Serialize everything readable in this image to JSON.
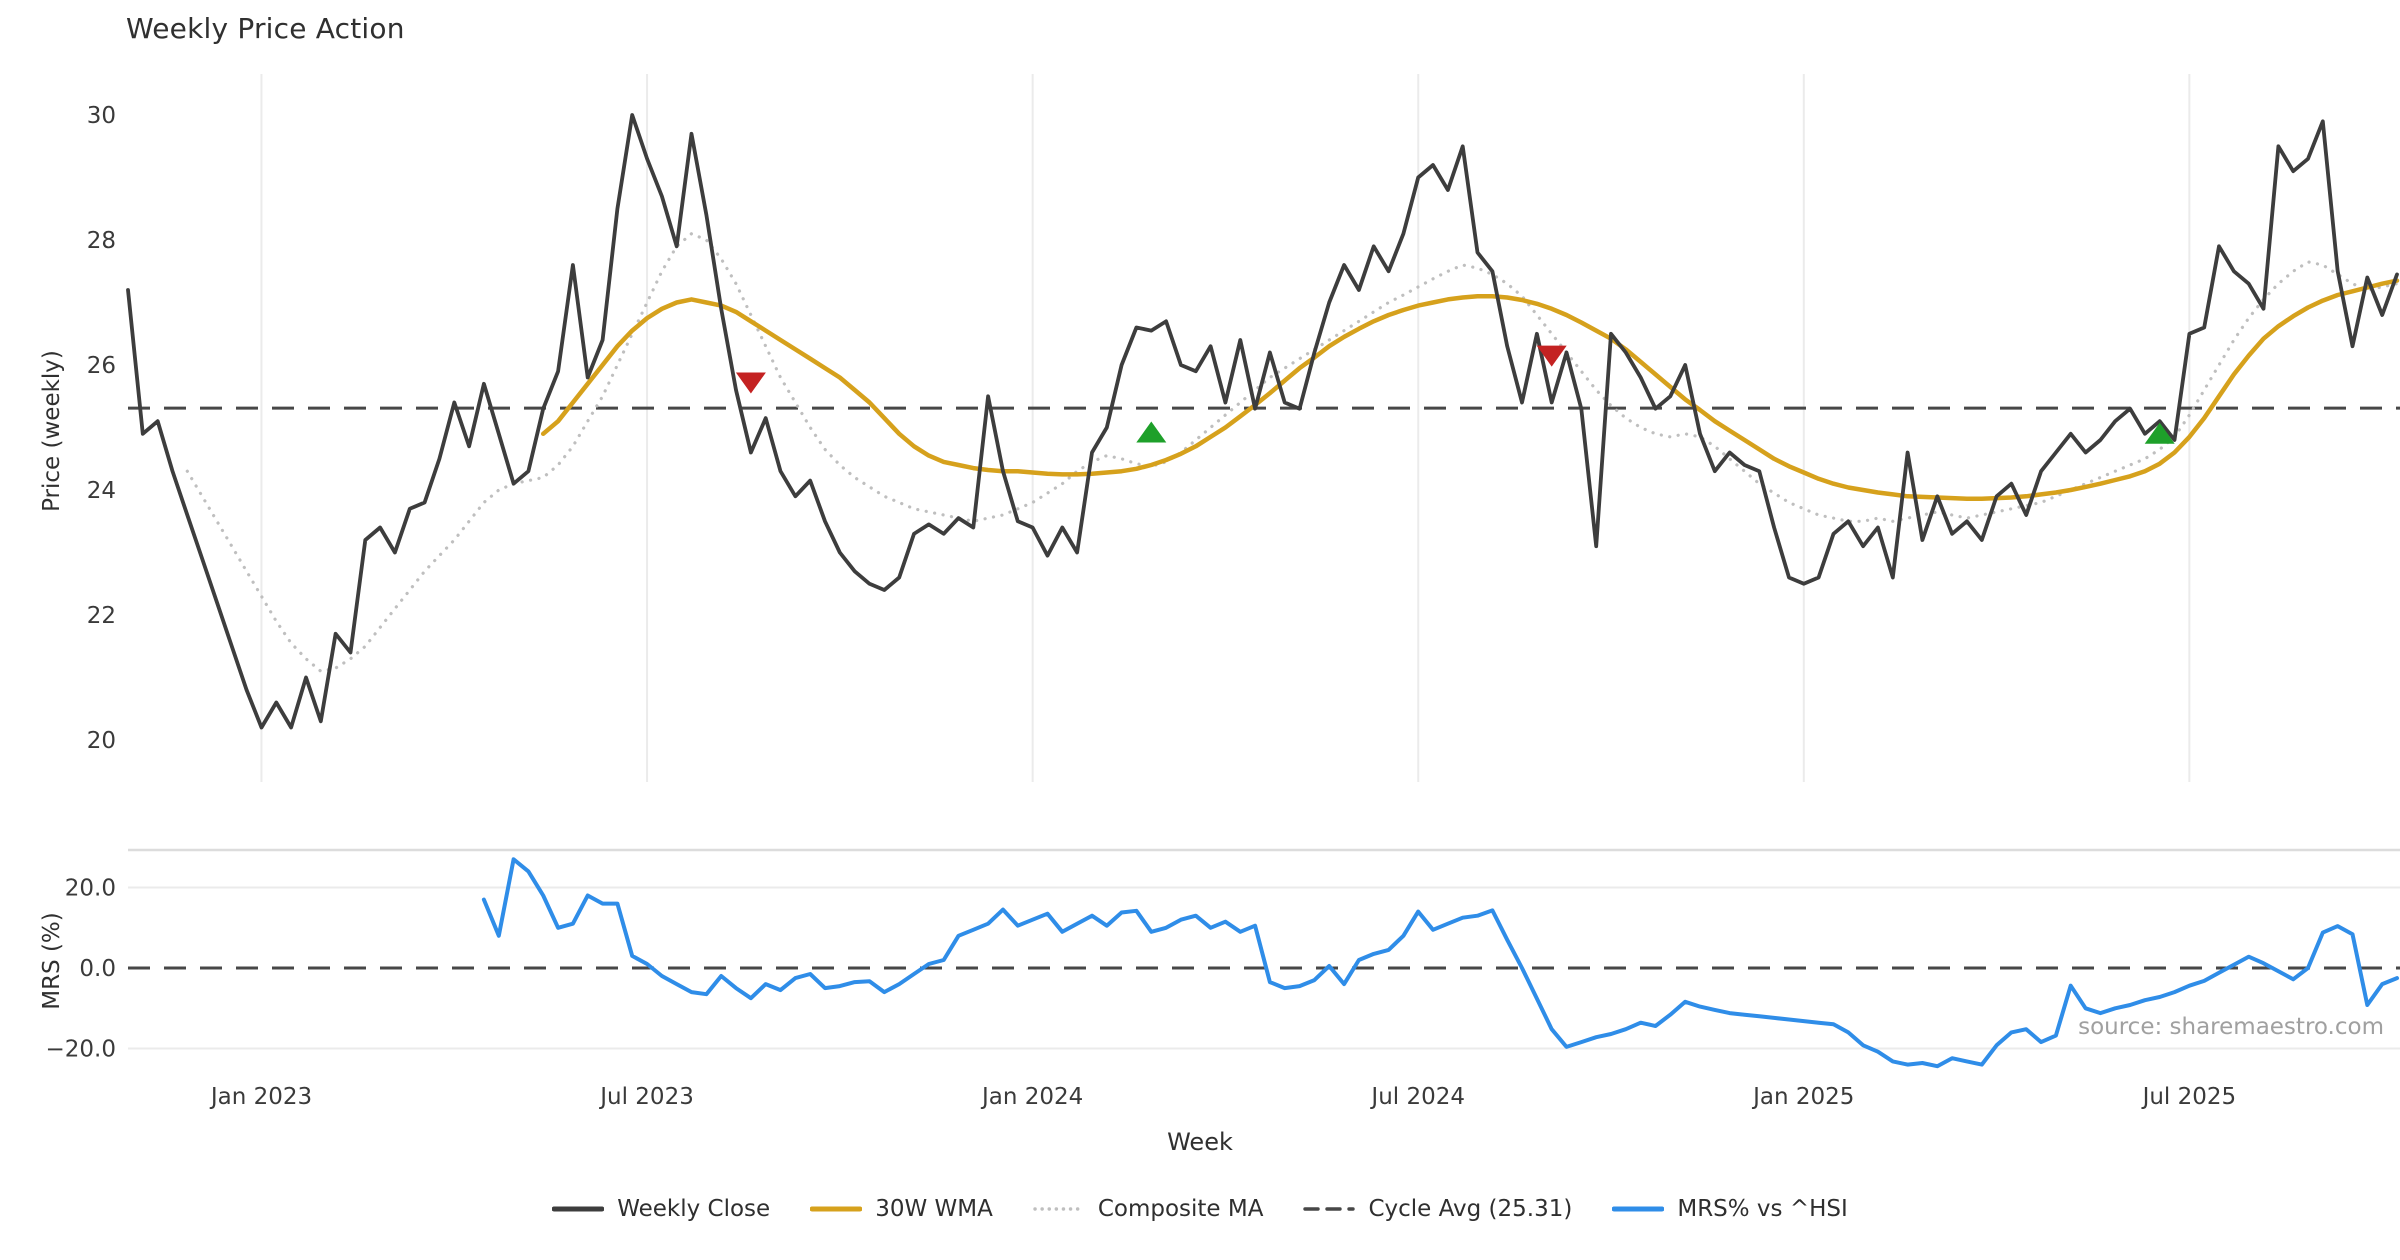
{
  "title": "Weekly Price Action",
  "source": "source: sharemaestro.com",
  "colors": {
    "close": "#3d3d3d",
    "wma": "#d6a11c",
    "composite": "#bfbfbf",
    "cycle_avg": "#474747",
    "mrs": "#2f8de8",
    "sell_marker": "#c42222",
    "buy_marker": "#1ea02a",
    "gridline": "#ebebeb",
    "panel_spine": "#dcdcdc",
    "tick_text": "#3a3a3a",
    "background": "#ffffff"
  },
  "legend": [
    {
      "label": "Weekly Close",
      "style": "solid",
      "color": "#3d3d3d"
    },
    {
      "label": "30W WMA",
      "style": "solid",
      "color": "#d6a11c"
    },
    {
      "label": "Composite MA",
      "style": "dotted",
      "color": "#bfbfbf"
    },
    {
      "label": "Cycle Avg (25.31)",
      "style": "dashed",
      "color": "#474747"
    },
    {
      "label": "MRS% vs ^HSI",
      "style": "solid",
      "color": "#2f8de8"
    }
  ],
  "chart_data": {
    "type": "line",
    "xlabel": "Week",
    "weeks_total": 154,
    "x_start": "2022-10-31",
    "xticks": [
      {
        "label": "Jan 2023",
        "week": 9
      },
      {
        "label": "Jul 2023",
        "week": 35
      },
      {
        "label": "Jan 2024",
        "week": 61
      },
      {
        "label": "Jul 2024",
        "week": 87
      },
      {
        "label": "Jan 2025",
        "week": 113
      },
      {
        "label": "Jul 2025",
        "week": 139
      }
    ],
    "panels": [
      {
        "name": "price",
        "ylabel": "Price (weekly)",
        "yticks": [
          30,
          28,
          26,
          24,
          22,
          20
        ],
        "ytick_labels": [
          "30",
          "28",
          "26",
          "24",
          "22",
          "20"
        ],
        "ylim": [
          19.3,
          30.7
        ],
        "grid": "vertical",
        "cycle_avg": 25.31,
        "series": [
          {
            "name": "Weekly Close",
            "start_week": 0,
            "values": [
              27.2,
              24.9,
              25.1,
              24.3,
              23.6,
              22.9,
              22.2,
              21.5,
              20.8,
              20.2,
              20.6,
              20.2,
              21.0,
              20.3,
              21.7,
              21.4,
              23.2,
              23.4,
              23.0,
              23.7,
              23.8,
              24.5,
              25.4,
              24.7,
              25.7,
              24.9,
              24.1,
              24.3,
              25.3,
              25.9,
              27.6,
              25.8,
              26.4,
              28.5,
              30.0,
              29.3,
              28.7,
              27.9,
              29.7,
              28.4,
              26.9,
              25.6,
              24.6,
              25.15,
              24.3,
              23.9,
              24.15,
              23.5,
              23.0,
              22.7,
              22.5,
              22.4,
              22.6,
              23.3,
              23.45,
              23.3,
              23.55,
              23.4,
              25.5,
              24.3,
              23.5,
              23.4,
              22.95,
              23.4,
              23.0,
              24.6,
              25.0,
              26.0,
              26.6,
              26.55,
              26.7,
              26.0,
              25.9,
              26.3,
              25.4,
              26.4,
              25.3,
              26.2,
              25.4,
              25.3,
              26.2,
              27.0,
              27.6,
              27.2,
              27.9,
              27.5,
              28.1,
              29.0,
              29.2,
              28.8,
              29.5,
              27.8,
              27.5,
              26.3,
              25.4,
              26.5,
              25.4,
              26.2,
              25.3,
              23.1,
              26.5,
              26.2,
              25.8,
              25.3,
              25.5,
              26.0,
              24.9,
              24.3,
              24.6,
              24.4,
              24.3,
              23.4,
              22.6,
              22.5,
              22.6,
              23.3,
              23.5,
              23.1,
              23.4,
              22.6,
              24.6,
              23.2,
              23.9,
              23.3,
              23.5,
              23.2,
              23.9,
              24.1,
              23.6,
              24.3,
              24.6,
              24.9,
              24.6,
              24.8,
              25.1,
              25.3,
              24.9,
              25.1,
              24.8,
              26.5,
              26.6,
              27.9,
              27.5,
              27.3,
              26.9,
              29.5,
              29.1,
              29.3,
              29.9,
              27.5,
              26.3,
              27.4,
              26.8,
              27.45
            ]
          },
          {
            "name": "30W WMA",
            "start_week": 28,
            "values": [
              24.9,
              25.1,
              25.4,
              25.7,
              26.0,
              26.3,
              26.55,
              26.75,
              26.9,
              27.0,
              27.05,
              27.0,
              26.95,
              26.85,
              26.7,
              26.55,
              26.4,
              26.25,
              26.1,
              25.95,
              25.8,
              25.6,
              25.4,
              25.15,
              24.9,
              24.7,
              24.55,
              24.45,
              24.4,
              24.35,
              24.32,
              24.3,
              24.3,
              24.28,
              24.26,
              24.25,
              24.25,
              24.26,
              24.28,
              24.3,
              24.34,
              24.4,
              24.48,
              24.58,
              24.7,
              24.85,
              25.0,
              25.18,
              25.36,
              25.55,
              25.75,
              25.95,
              26.12,
              26.3,
              26.45,
              26.58,
              26.7,
              26.8,
              26.88,
              26.95,
              27.0,
              27.05,
              27.08,
              27.1,
              27.1,
              27.08,
              27.04,
              26.98,
              26.9,
              26.8,
              26.68,
              26.55,
              26.42,
              26.25,
              26.05,
              25.85,
              25.65,
              25.45,
              25.28,
              25.1,
              24.95,
              24.8,
              24.65,
              24.5,
              24.38,
              24.28,
              24.18,
              24.1,
              24.04,
              24.0,
              23.96,
              23.93,
              23.9,
              23.89,
              23.88,
              23.87,
              23.86,
              23.86,
              23.87,
              23.88,
              23.9,
              23.93,
              23.96,
              24.0,
              24.05,
              24.1,
              24.16,
              24.22,
              24.3,
              24.42,
              24.6,
              24.85,
              25.15,
              25.5,
              25.85,
              26.15,
              26.42,
              26.62,
              26.78,
              26.92,
              27.03,
              27.12,
              27.18,
              27.24,
              27.3,
              27.35
            ]
          },
          {
            "name": "Composite MA",
            "start_week": 4,
            "values": [
              24.3,
              23.9,
              23.5,
              23.1,
              22.7,
              22.3,
              21.9,
              21.55,
              21.3,
              21.1,
              21.15,
              21.3,
              21.5,
              21.8,
              22.1,
              22.4,
              22.7,
              22.95,
              23.2,
              23.5,
              23.8,
              24.0,
              24.1,
              24.15,
              24.2,
              24.4,
              24.7,
              25.1,
              25.5,
              26.0,
              26.5,
              27.0,
              27.5,
              27.9,
              28.1,
              28.0,
              27.7,
              27.3,
              26.8,
              26.3,
              25.8,
              25.4,
              25.0,
              24.65,
              24.4,
              24.2,
              24.05,
              23.9,
              23.8,
              23.7,
              23.65,
              23.6,
              23.55,
              23.5,
              23.55,
              23.6,
              23.7,
              23.8,
              23.95,
              24.1,
              24.3,
              24.45,
              24.55,
              24.5,
              24.42,
              24.38,
              24.45,
              24.6,
              24.8,
              25.0,
              25.2,
              25.4,
              25.6,
              25.8,
              25.95,
              26.1,
              26.25,
              26.4,
              26.55,
              26.7,
              26.85,
              27.0,
              27.12,
              27.25,
              27.38,
              27.5,
              27.6,
              27.55,
              27.45,
              27.3,
              27.1,
              26.8,
              26.5,
              26.2,
              25.9,
              25.6,
              25.35,
              25.15,
              25.0,
              24.9,
              24.85,
              24.9,
              24.85,
              24.7,
              24.5,
              24.3,
              24.1,
              23.95,
              23.8,
              23.7,
              23.6,
              23.55,
              23.5,
              23.5,
              23.55,
              23.5,
              23.55,
              23.6,
              23.65,
              23.6,
              23.55,
              23.6,
              23.65,
              23.7,
              23.75,
              23.8,
              23.9,
              24.0,
              24.1,
              24.2,
              24.3,
              24.4,
              24.5,
              24.65,
              24.85,
              25.2,
              25.6,
              26.0,
              26.4,
              26.75,
              27.05,
              27.3,
              27.5,
              27.65,
              27.6,
              27.45,
              27.3,
              27.2,
              27.25,
              27.3
            ]
          }
        ],
        "markers": {
          "sell": [
            {
              "week": 42,
              "price": 25.72
            },
            {
              "week": 96,
              "price": 26.15
            }
          ],
          "buy": [
            {
              "week": 69,
              "price": 24.92
            },
            {
              "week": 137,
              "price": 24.9
            }
          ]
        }
      },
      {
        "name": "mrs",
        "ylabel": "MRS (%)",
        "yticks": [
          20,
          0,
          -20
        ],
        "ytick_labels": [
          "20.0",
          "0.0",
          "−20.0"
        ],
        "ylim": [
          -27,
          30
        ],
        "zero_line_dashed": true,
        "series": [
          {
            "name": "MRS% vs ^HSI",
            "start_week": 24,
            "values": [
              17,
              8,
              27,
              24,
              18,
              10,
              11,
              18,
              16,
              16,
              3,
              1,
              -2,
              -4,
              -6,
              -6.5,
              -2,
              -5,
              -7.5,
              -4,
              -5.5,
              -2.5,
              -1.5,
              -5,
              -4.5,
              -3.5,
              -3.3,
              -6,
              -4,
              -1.5,
              1,
              2,
              8,
              9.5,
              11,
              14.5,
              10.5,
              12,
              13.5,
              9,
              11,
              13,
              10.5,
              13.8,
              14.2,
              9,
              10,
              12,
              13,
              10,
              11.5,
              9,
              10.5,
              -3.5,
              -5,
              -4.5,
              -3,
              0.5,
              -4,
              2,
              3.5,
              4.5,
              8,
              14,
              9.5,
              11,
              12.5,
              13,
              14.3,
              7,
              0,
              -7.6,
              -15.2,
              -19.6,
              -18.4,
              -17.2,
              -16.4,
              -15.2,
              -13.6,
              -14.4,
              -11.6,
              -8.4,
              -9.6,
              -10.4,
              -11.2,
              -11.6,
              -12,
              -12.4,
              -12.8,
              -13.2,
              -13.6,
              -14,
              -16,
              -19.2,
              -20.8,
              -23.2,
              -24,
              -23.6,
              -24.4,
              -22.4,
              -23.2,
              -24,
              -19.2,
              -16,
              -15.2,
              -18.4,
              -16.8,
              -4.4,
              -10,
              -11.2,
              -10,
              -9.2,
              -8,
              -7.2,
              -6,
              -4.4,
              -3.2,
              -1.2,
              0.8,
              2.8,
              1.2,
              -0.8,
              -2.8,
              0,
              8.8,
              10.4,
              8.4,
              -9.2,
              -4,
              -2.5
            ]
          }
        ]
      }
    ]
  }
}
